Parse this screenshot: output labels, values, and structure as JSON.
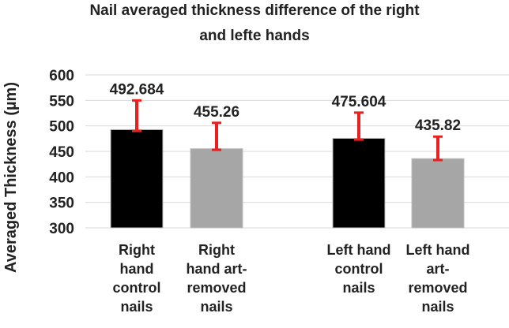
{
  "chart_data": {
    "type": "bar",
    "title_lines": [
      "Nail averaged thickness difference of the right",
      "and lefte hands"
    ],
    "ylabel": "Averaged Thickness (µm)",
    "xlabel": "",
    "ylim": [
      300,
      600
    ],
    "yticks": [
      300,
      350,
      400,
      450,
      500,
      550,
      600
    ],
    "grid": true,
    "categories": [
      [
        "Right",
        "hand",
        "control",
        "nails"
      ],
      [
        "Right",
        "hand art-",
        "removed",
        "nails"
      ],
      [
        "Left hand",
        "control",
        "nails"
      ],
      [
        "Left hand",
        "art-",
        "removed",
        "nails"
      ]
    ],
    "values": [
      492.684,
      455.26,
      475.604,
      435.82
    ],
    "value_labels": [
      "492.684",
      "455.26",
      "475.604",
      "435.82"
    ],
    "error_upper": [
      550,
      506,
      526,
      479
    ],
    "error_lower": [
      490,
      453,
      473,
      433
    ],
    "bar_colors": [
      "#000000",
      "#a6a6a6",
      "#000000",
      "#a6a6a6"
    ],
    "error_color": "#e8201f"
  }
}
